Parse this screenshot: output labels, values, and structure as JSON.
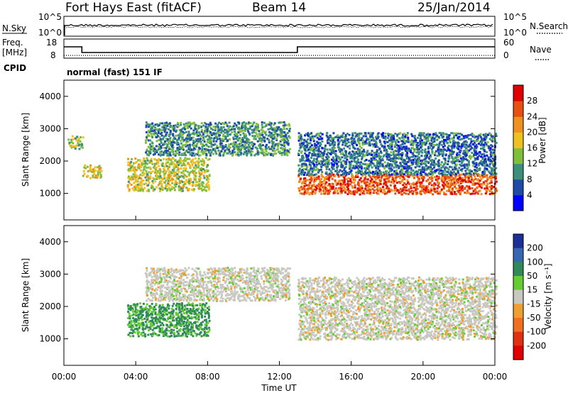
{
  "header": {
    "title": "Fort Hays East (fitACF)",
    "beam": "Beam 14",
    "date": "25/Jan/2014"
  },
  "noise_panel": {
    "left_label": "N.Sky",
    "left_ticks": [
      "10^5",
      "10^0"
    ],
    "right_ticks": [
      "10^5",
      "10^0"
    ],
    "right_label": "N.Search"
  },
  "freq_panel": {
    "left_label_top": "Freq.",
    "left_label_bottom": "[MHz]",
    "left_ticks": [
      "18",
      "8"
    ],
    "right_ticks": [
      "60",
      "0"
    ],
    "right_label": "Nave",
    "cpid_label": "CPID",
    "cpid_text": "normal (fast) 151 IF"
  },
  "x_axis": {
    "label": "Time UT",
    "ticks": [
      "00:00",
      "04:00",
      "08:00",
      "12:00",
      "16:00",
      "20:00",
      "00:00"
    ]
  },
  "power_panel": {
    "ylabel": "Slant Range [km]",
    "yticks": [
      "1000",
      "2000",
      "3000",
      "4000"
    ],
    "colorbar_label": "Power [dB]",
    "colorbar_ticks": [
      "4",
      "8",
      "12",
      "16",
      "20",
      "24",
      "28"
    ],
    "colors": [
      "#0000ff",
      "#1e4aa8",
      "#3c8f7a",
      "#7fbf3a",
      "#f0c020",
      "#f09020",
      "#e85010",
      "#e00000"
    ]
  },
  "velocity_panel": {
    "ylabel": "Slant Range [km]",
    "yticks": [
      "1000",
      "2000",
      "3000",
      "4000"
    ],
    "colorbar_label": "Velocity [m s⁻¹]",
    "colorbar_ticks": [
      "200",
      "100",
      "50",
      "15",
      "-15",
      "-50",
      "-100",
      "-200"
    ],
    "colors": [
      "#1a2f9a",
      "#3568b0",
      "#2e8b57",
      "#66cc33",
      "#c8c8c0",
      "#f0a030",
      "#f07020",
      "#e03010",
      "#e00000"
    ]
  },
  "chart_data": {
    "type": "heatmap",
    "title": "Fort Hays East (fitACF)",
    "subtitle": "Beam 14 — 25/Jan/2014",
    "xlabel": "Time UT",
    "ylabel": "Slant Range [km]",
    "xlim_hours": [
      0,
      24
    ],
    "ylim_km": [
      180,
      4500
    ],
    "series": [
      {
        "name": "Freq. [MHz]",
        "type": "step",
        "points": [
          [
            0,
            14
          ],
          [
            1,
            14
          ],
          [
            1,
            10
          ],
          [
            13,
            10
          ],
          [
            13,
            14
          ],
          [
            24,
            14
          ]
        ]
      },
      {
        "name": "Nave",
        "type": "line",
        "points": [
          [
            0,
            8
          ],
          [
            24,
            8
          ]
        ]
      }
    ],
    "power_features_dB": [
      {
        "from_h": 0.2,
        "to_h": 1.0,
        "range_km": [
          2400,
          2800
        ],
        "level": 14
      },
      {
        "from_h": 1.0,
        "to_h": 2.0,
        "range_km": [
          1500,
          1900
        ],
        "level": 18
      },
      {
        "from_h": 3.5,
        "to_h": 8.0,
        "range_km": [
          1100,
          2100
        ],
        "level": 16
      },
      {
        "from_h": 4.5,
        "to_h": 12.5,
        "range_km": [
          2200,
          3200
        ],
        "level": 10
      },
      {
        "from_h": 13.0,
        "to_h": 24.0,
        "range_km": [
          1000,
          1600
        ],
        "level": 26
      },
      {
        "from_h": 13.0,
        "to_h": 24.0,
        "range_km": [
          1600,
          2900
        ],
        "level": 8
      }
    ],
    "velocity_features_ms": [
      {
        "from_h": 3.5,
        "to_h": 8.0,
        "range_km": [
          1100,
          2100
        ],
        "level": 40
      },
      {
        "from_h": 4.5,
        "to_h": 12.5,
        "range_km": [
          2200,
          3200
        ],
        "level": 0
      },
      {
        "from_h": 13.0,
        "to_h": 24.0,
        "range_km": [
          1000,
          2900
        ],
        "level": 0
      }
    ]
  }
}
